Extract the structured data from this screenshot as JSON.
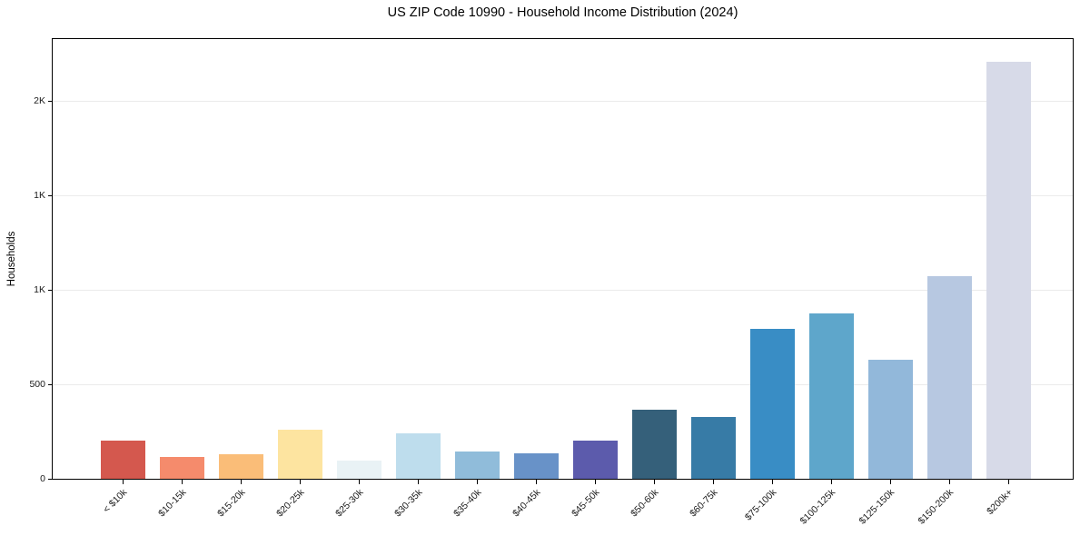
{
  "chart_data": {
    "type": "bar",
    "title": "US ZIP Code 10990 - Household Income Distribution (2024)",
    "xlabel": "",
    "ylabel": "Households",
    "categories": [
      "< $10k",
      "$10-15k",
      "$15-20k",
      "$20-25k",
      "$25-30k",
      "$30-35k",
      "$35-40k",
      "$40-45k",
      "$45-50k",
      "$50-60k",
      "$60-75k",
      "$75-100k",
      "$100-125k",
      "$125-150k",
      "$150-200k",
      "$200k+"
    ],
    "values": [
      200,
      115,
      130,
      260,
      95,
      240,
      145,
      135,
      200,
      365,
      325,
      795,
      875,
      630,
      1070,
      2205
    ],
    "bar_colors": [
      "#d4584e",
      "#f58b6c",
      "#fabd78",
      "#fde4a0",
      "#e9f2f5",
      "#bedded",
      "#90bcda",
      "#6892c8",
      "#5c5bac",
      "#35607a",
      "#377ba6",
      "#398dc5",
      "#5ea6cb",
      "#92b8da",
      "#b7c8e1",
      "#d7dae8"
    ],
    "ylim": [
      0,
      2327
    ],
    "yticks": {
      "values": [
        0,
        500,
        1000,
        1500,
        2000
      ],
      "labels": [
        "0",
        "500",
        "1K",
        "1K",
        "2K"
      ]
    },
    "grid": "horizontal gridlines on",
    "legend": "none",
    "background_color": "#ffffff",
    "grid_color": "#ebebeb",
    "axis_color": "#000000"
  }
}
